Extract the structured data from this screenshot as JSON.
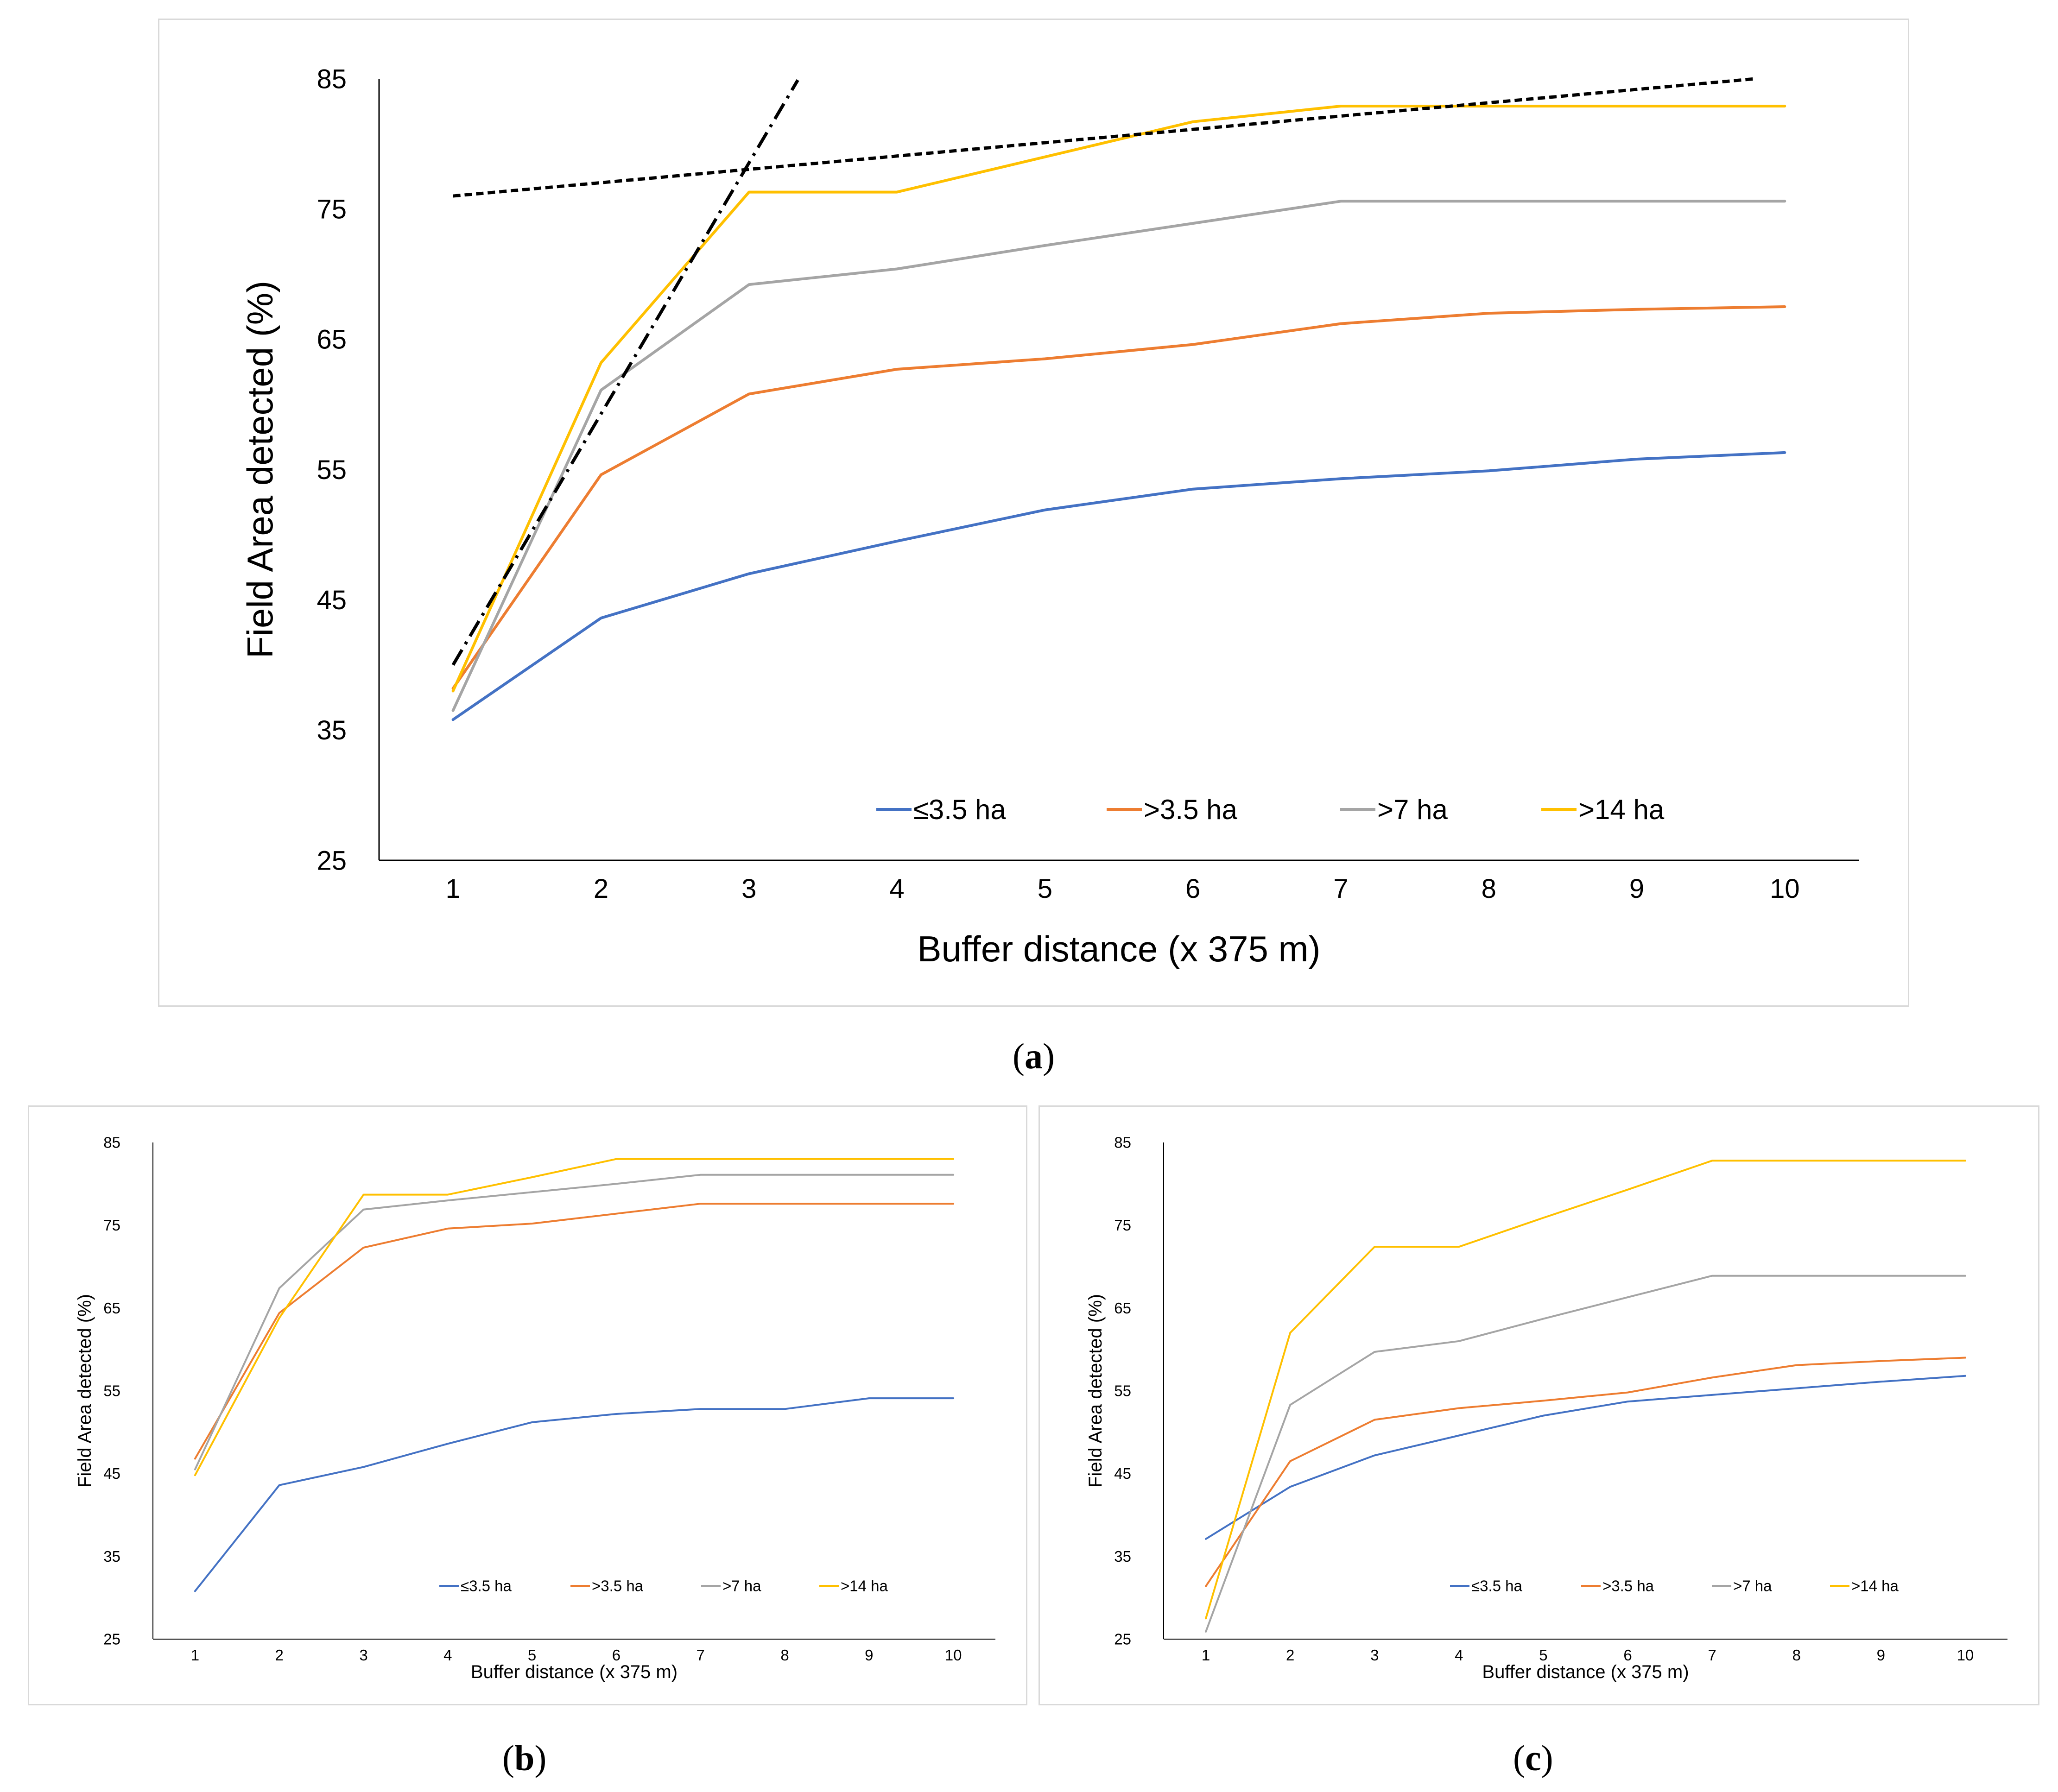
{
  "captions": {
    "a": "a",
    "b": "b",
    "c": "c"
  },
  "chart_data": [
    {
      "id": "a",
      "type": "line",
      "title": "",
      "xlabel": "Buffer distance (x 375 m)",
      "ylabel": "Field Area detected (%)",
      "x": [
        1,
        2,
        3,
        4,
        5,
        6,
        7,
        8,
        9,
        10
      ],
      "ylim": [
        25,
        85
      ],
      "yticks": [
        25,
        35,
        45,
        55,
        65,
        75,
        85
      ],
      "grid": false,
      "legend_position": "bottom-center",
      "colors": {
        "le3_5": "#4472C4",
        "gt3_5": "#ED7D31",
        "gt7": "#A5A5A5",
        "gt14": "#FFC000",
        "trend": "#000000"
      },
      "series": [
        {
          "name": "≤3.5 ha",
          "key": "le3_5",
          "values": [
            35.8,
            43.6,
            47.0,
            49.5,
            51.9,
            53.5,
            54.3,
            54.9,
            55.8,
            56.3
          ]
        },
        {
          "name": ">3.5 ha",
          "key": "gt3_5",
          "values": [
            38.2,
            54.6,
            60.8,
            62.7,
            63.5,
            64.6,
            66.2,
            67.0,
            67.3,
            67.5
          ]
        },
        {
          "name": ">7 ha",
          "key": "gt7",
          "values": [
            36.5,
            61.1,
            69.2,
            70.4,
            72.2,
            73.9,
            75.6,
            75.6,
            75.6,
            75.6
          ]
        },
        {
          "name": ">14 ha",
          "key": "gt14",
          "values": [
            38.0,
            63.2,
            76.3,
            76.3,
            79.0,
            81.7,
            82.9,
            82.9,
            82.9,
            82.9
          ]
        }
      ],
      "trendlines": [
        {
          "style": "dashed",
          "x": [
            1,
            9.8
          ],
          "y": [
            76.0,
            85.0
          ]
        },
        {
          "style": "dash-dot",
          "x": [
            1,
            3.33
          ],
          "y": [
            40.0,
            84.9
          ]
        }
      ]
    },
    {
      "id": "b",
      "type": "line",
      "title": "",
      "xlabel": "Buffer distance (x 375 m)",
      "ylabel": "Field Area detected (%)",
      "x": [
        1,
        2,
        3,
        4,
        5,
        6,
        7,
        8,
        9,
        10
      ],
      "ylim": [
        25,
        85
      ],
      "yticks": [
        25,
        35,
        45,
        55,
        65,
        75,
        85
      ],
      "grid": false,
      "legend_position": "bottom-center",
      "colors": {
        "le3_5": "#4472C4",
        "gt3_5": "#ED7D31",
        "gt7": "#A5A5A5",
        "gt14": "#FFC000"
      },
      "series": [
        {
          "name": "≤3.5 ha",
          "key": "le3_5",
          "values": [
            30.8,
            43.6,
            45.8,
            48.6,
            51.2,
            52.2,
            52.8,
            52.8,
            54.1,
            54.1
          ]
        },
        {
          "name": ">3.5 ha",
          "key": "gt3_5",
          "values": [
            46.8,
            64.4,
            72.3,
            74.6,
            75.2,
            76.4,
            77.6,
            77.6,
            77.6,
            77.6
          ]
        },
        {
          "name": ">7 ha",
          "key": "gt7",
          "values": [
            45.5,
            67.4,
            76.9,
            78.0,
            79.0,
            80.0,
            81.1,
            81.1,
            81.1,
            81.1
          ]
        },
        {
          "name": ">14 ha",
          "key": "gt14",
          "values": [
            44.8,
            63.8,
            78.7,
            78.7,
            80.8,
            83.0,
            83.0,
            83.0,
            83.0,
            83.0
          ]
        }
      ]
    },
    {
      "id": "c",
      "type": "line",
      "title": "",
      "xlabel": "Buffer distance (x 375 m)",
      "ylabel": "Field Area detected (%)",
      "x": [
        1,
        2,
        3,
        4,
        5,
        6,
        7,
        8,
        9,
        10
      ],
      "ylim": [
        25,
        85
      ],
      "yticks": [
        25,
        35,
        45,
        55,
        65,
        75,
        85
      ],
      "grid": false,
      "legend_position": "bottom-center",
      "colors": {
        "le3_5": "#4472C4",
        "gt3_5": "#ED7D31",
        "gt7": "#A5A5A5",
        "gt14": "#FFC000"
      },
      "series": [
        {
          "name": "≤3.5 ha",
          "key": "le3_5",
          "values": [
            37.1,
            43.4,
            47.2,
            49.6,
            52.0,
            53.7,
            54.5,
            55.3,
            56.1,
            56.8
          ]
        },
        {
          "name": ">3.5 ha",
          "key": "gt3_5",
          "values": [
            31.4,
            46.5,
            51.5,
            52.9,
            53.8,
            54.8,
            56.6,
            58.1,
            58.6,
            59.0
          ]
        },
        {
          "name": ">7 ha",
          "key": "gt7",
          "values": [
            25.9,
            53.3,
            59.7,
            61.0,
            63.7,
            66.3,
            68.9,
            68.9,
            68.9,
            68.9
          ]
        },
        {
          "name": ">14 ha",
          "key": "gt14",
          "values": [
            27.5,
            62.0,
            72.4,
            72.4,
            75.9,
            79.3,
            82.8,
            82.8,
            82.8,
            82.8
          ]
        }
      ]
    }
  ]
}
